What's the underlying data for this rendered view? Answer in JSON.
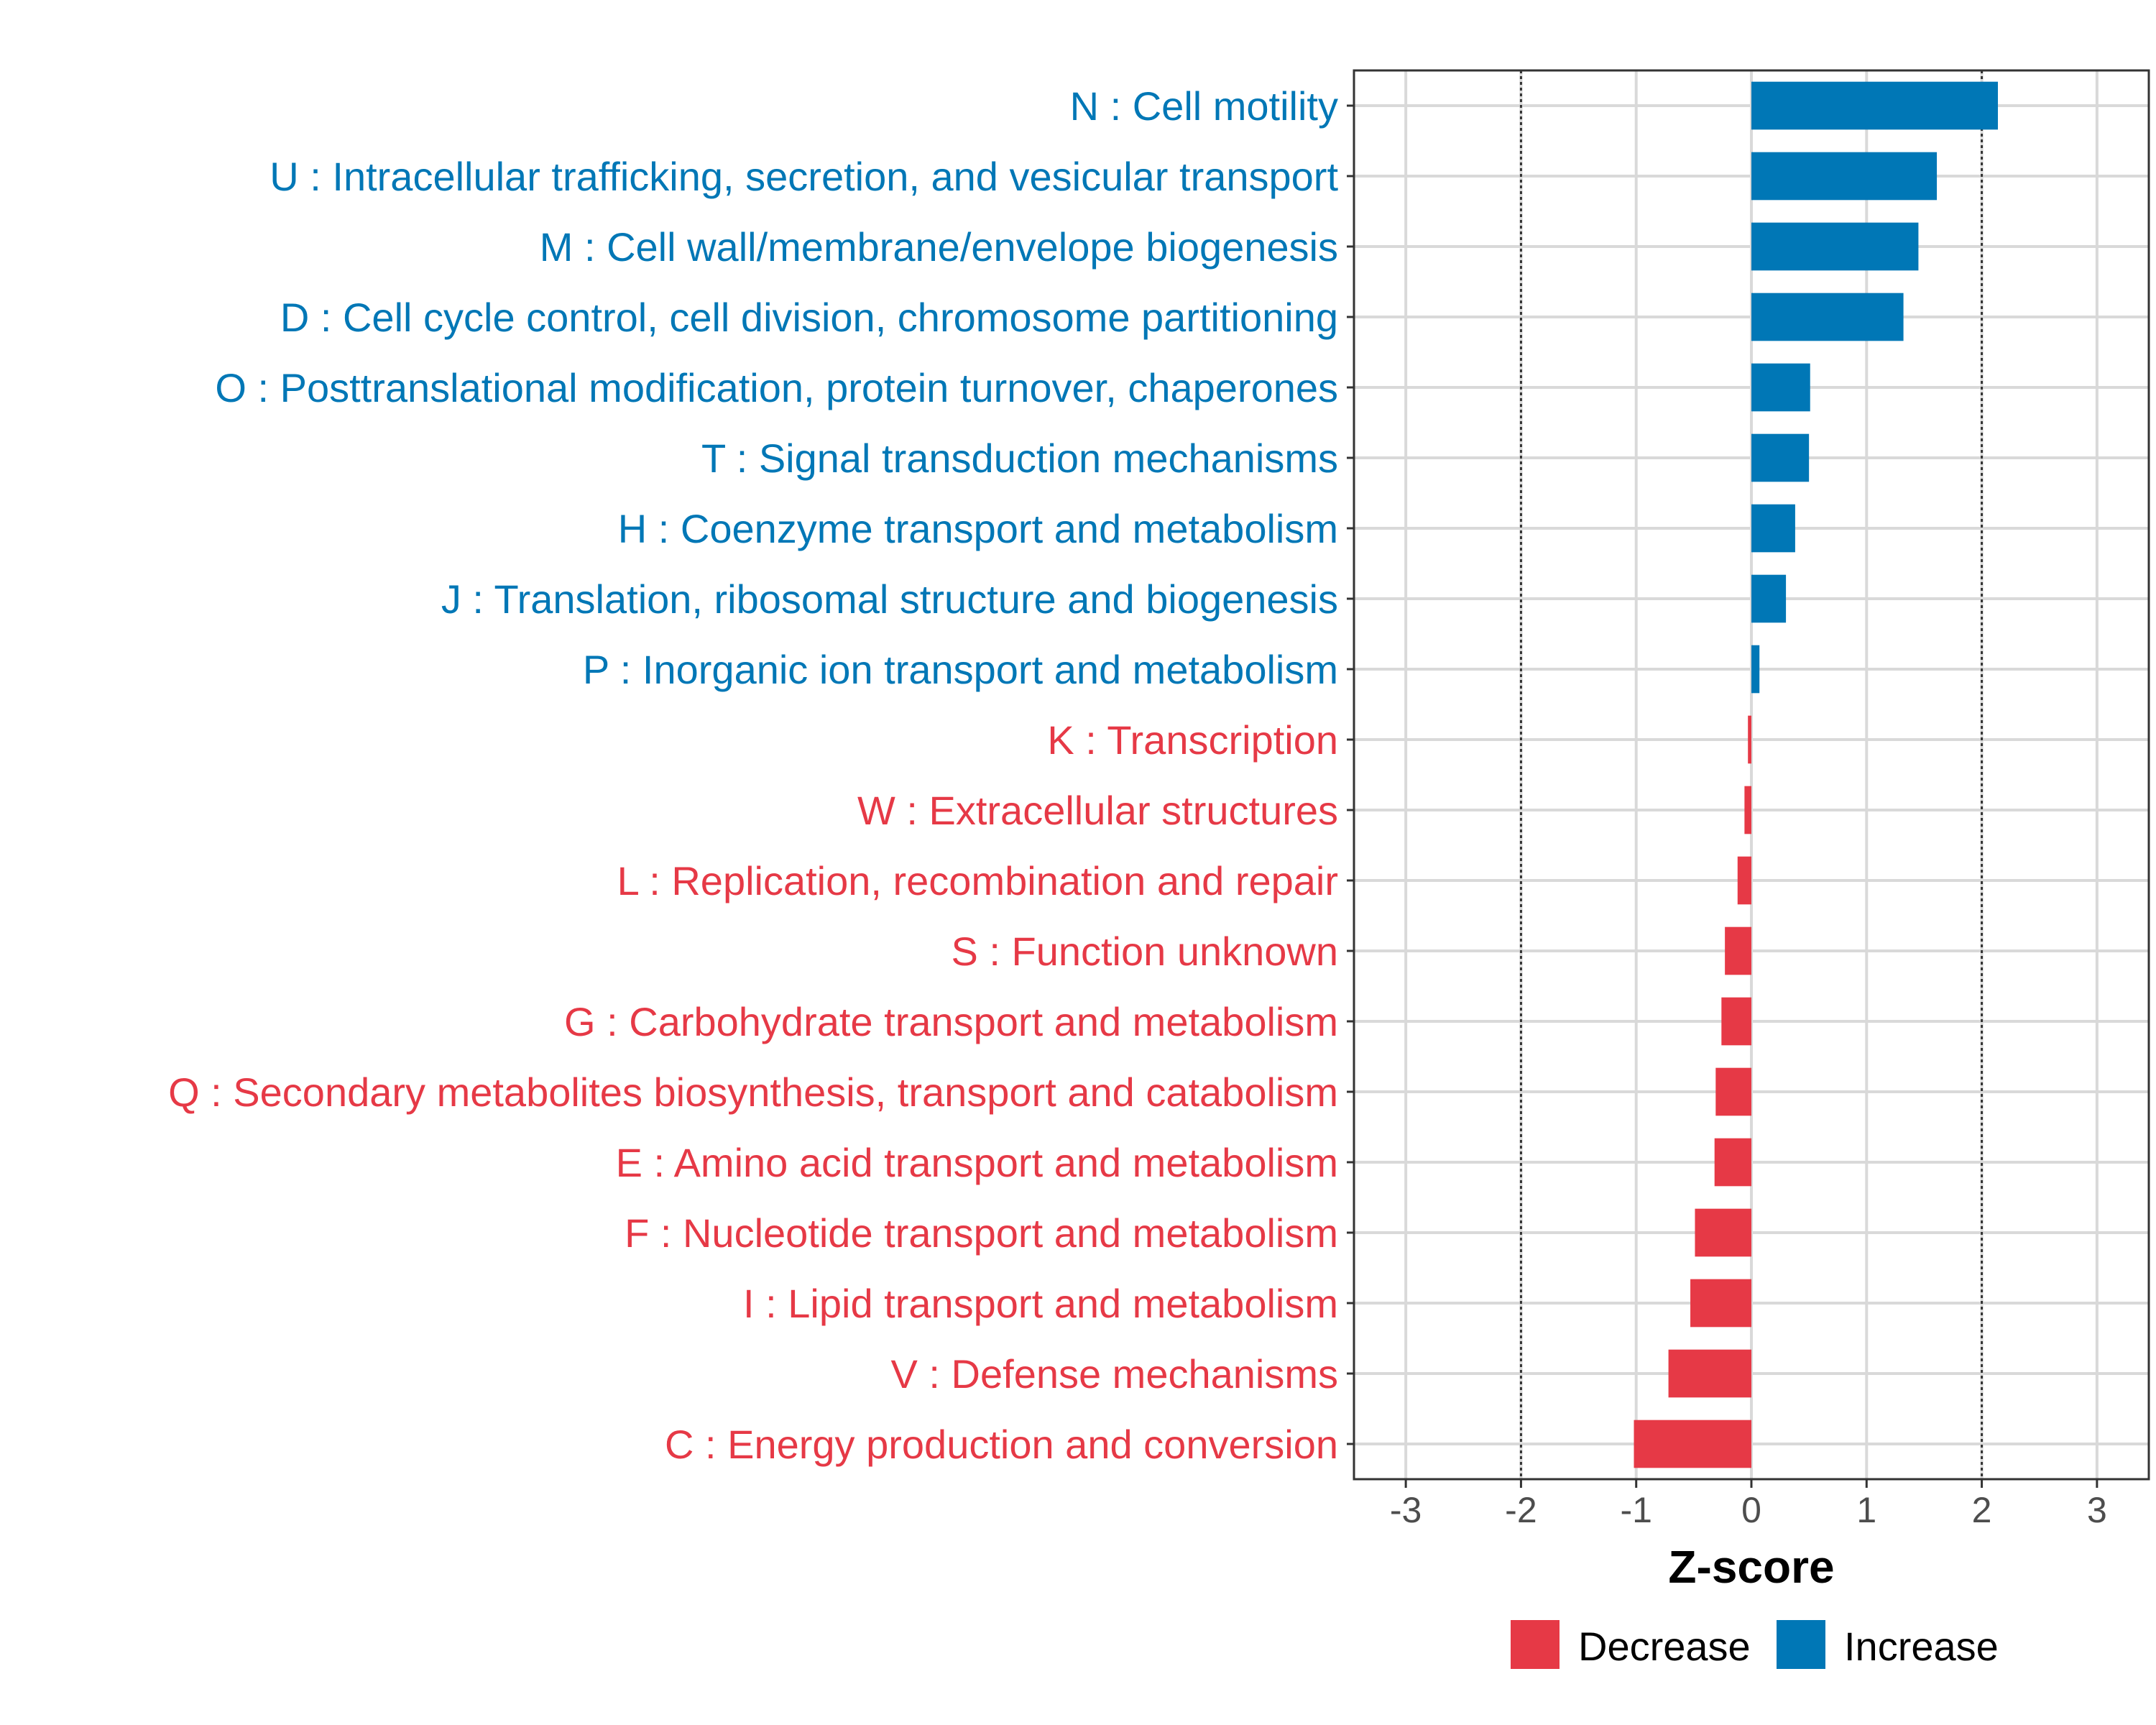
{
  "chart_data": {
    "type": "bar",
    "orientation": "horizontal",
    "xlabel": "Z-score",
    "ylabel": "",
    "xlim": [
      -3.45,
      3.45
    ],
    "x_ticks": [
      -3,
      -2,
      -1,
      0,
      1,
      2,
      3
    ],
    "reference_lines": [
      -2,
      2
    ],
    "grid": true,
    "legend_position": "bottom",
    "legend": [
      {
        "name": "Decrease",
        "color": "#e63946"
      },
      {
        "name": "Increase",
        "color": "#0077b6"
      }
    ],
    "colors": {
      "Increase": "#0077b6",
      "Decrease": "#e63946"
    },
    "categories": [
      {
        "label": "N : Cell motility",
        "value": 2.14
      },
      {
        "label": "U : Intracellular trafficking, secretion, and vesicular transport",
        "value": 1.61
      },
      {
        "label": "M : Cell wall/membrane/envelope biogenesis",
        "value": 1.45
      },
      {
        "label": "D : Cell cycle control, cell division, chromosome partitioning",
        "value": 1.32
      },
      {
        "label": "O : Posttranslational modification, protein turnover, chaperones",
        "value": 0.51
      },
      {
        "label": "T : Signal transduction mechanisms",
        "value": 0.5
      },
      {
        "label": "H : Coenzyme transport and metabolism",
        "value": 0.38
      },
      {
        "label": "J : Translation, ribosomal structure and biogenesis",
        "value": 0.3
      },
      {
        "label": "P : Inorganic ion transport and metabolism",
        "value": 0.07
      },
      {
        "label": "K : Transcription",
        "value": -0.03
      },
      {
        "label": "W : Extracellular structures",
        "value": -0.06
      },
      {
        "label": "L : Replication, recombination and repair",
        "value": -0.12
      },
      {
        "label": "S : Function unknown",
        "value": -0.23
      },
      {
        "label": "G : Carbohydrate transport and metabolism",
        "value": -0.26
      },
      {
        "label": "Q : Secondary metabolites biosynthesis, transport and catabolism",
        "value": -0.31
      },
      {
        "label": "E : Amino acid transport and metabolism",
        "value": -0.32
      },
      {
        "label": "F : Nucleotide transport and metabolism",
        "value": -0.49
      },
      {
        "label": "I : Lipid transport and metabolism",
        "value": -0.53
      },
      {
        "label": "V : Defense mechanisms",
        "value": -0.72
      },
      {
        "label": "C : Energy production and conversion",
        "value": -1.02
      }
    ]
  }
}
